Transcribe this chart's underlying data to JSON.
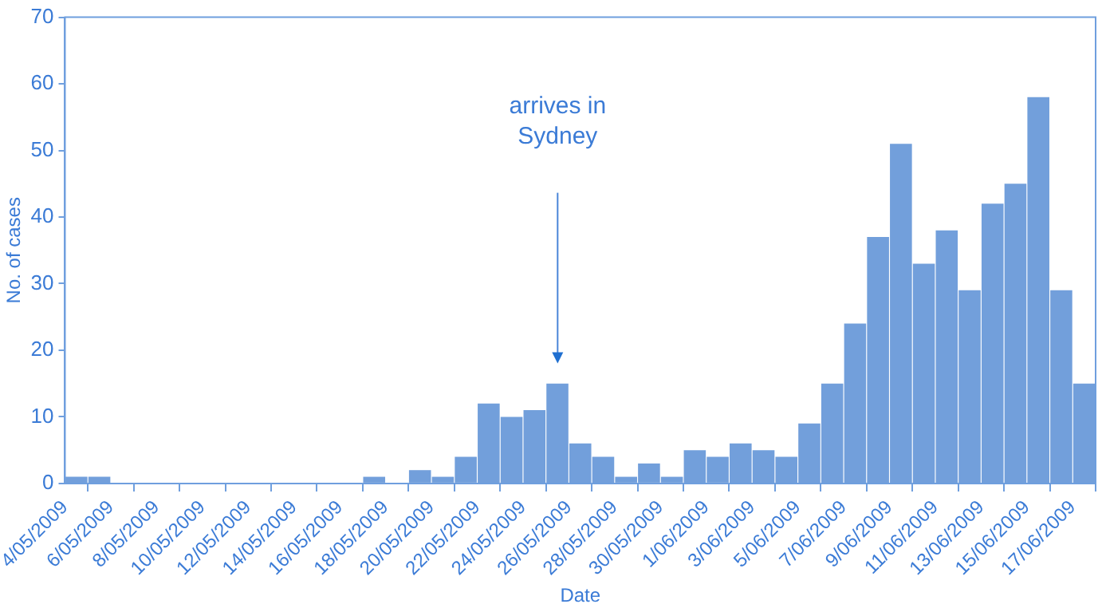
{
  "chart_data": {
    "type": "histogram",
    "xlabel": "Date",
    "ylabel": "No. of cases",
    "bins": [
      "2009-05-04",
      "2009-05-05",
      "2009-05-06",
      "2009-05-07",
      "2009-05-08",
      "2009-05-09",
      "2009-05-10",
      "2009-05-11",
      "2009-05-12",
      "2009-05-13",
      "2009-05-14",
      "2009-05-15",
      "2009-05-16",
      "2009-05-17",
      "2009-05-18",
      "2009-05-19",
      "2009-05-20",
      "2009-05-21",
      "2009-05-22",
      "2009-05-23",
      "2009-05-24",
      "2009-05-25",
      "2009-05-26",
      "2009-05-27",
      "2009-05-28",
      "2009-05-29",
      "2009-05-30",
      "2009-05-31",
      "2009-06-01",
      "2009-06-02",
      "2009-06-03",
      "2009-06-04",
      "2009-06-05",
      "2009-06-06",
      "2009-06-07",
      "2009-06-08",
      "2009-06-09",
      "2009-06-10",
      "2009-06-11",
      "2009-06-12",
      "2009-06-13",
      "2009-06-14",
      "2009-06-15",
      "2009-06-16",
      "2009-06-17",
      "2009-06-18"
    ],
    "values": [
      1,
      1,
      0,
      0,
      0,
      0,
      0,
      0,
      0,
      0,
      0,
      0,
      0,
      1,
      0,
      2,
      1,
      4,
      12,
      10,
      11,
      15,
      6,
      4,
      1,
      3,
      1,
      5,
      4,
      6,
      5,
      4,
      9,
      15,
      24,
      37,
      51,
      33,
      38,
      29,
      42,
      45,
      58,
      29,
      15
    ],
    "color": "#729fdb",
    "xlim": [
      "2009-05-04",
      "2009-06-18"
    ],
    "xticks": [
      {
        "value": "2009-05-04",
        "label": "4/05/2009"
      },
      {
        "value": "2009-05-06",
        "label": "6/05/2009"
      },
      {
        "value": "2009-05-08",
        "label": "8/05/2009"
      },
      {
        "value": "2009-05-10",
        "label": "10/05/2009"
      },
      {
        "value": "2009-05-12",
        "label": "12/05/2009"
      },
      {
        "value": "2009-05-14",
        "label": "14/05/2009"
      },
      {
        "value": "2009-05-16",
        "label": "16/05/2009"
      },
      {
        "value": "2009-05-18",
        "label": "18/05/2009"
      },
      {
        "value": "2009-05-20",
        "label": "20/05/2009"
      },
      {
        "value": "2009-05-22",
        "label": "22/05/2009"
      },
      {
        "value": "2009-05-24",
        "label": "24/05/2009"
      },
      {
        "value": "2009-05-26",
        "label": "26/05/2009"
      },
      {
        "value": "2009-05-28",
        "label": "28/05/2009"
      },
      {
        "value": "2009-05-30",
        "label": "30/05/2009"
      },
      {
        "value": "2009-06-01",
        "label": "1/06/2009"
      },
      {
        "value": "2009-06-03",
        "label": "3/06/2009"
      },
      {
        "value": "2009-06-05",
        "label": "5/06/2009"
      },
      {
        "value": "2009-06-07",
        "label": "7/06/2009"
      },
      {
        "value": "2009-06-09",
        "label": "9/06/2009"
      },
      {
        "value": "2009-06-11",
        "label": "11/06/2009"
      },
      {
        "value": "2009-06-13",
        "label": "13/06/2009"
      },
      {
        "value": "2009-06-15",
        "label": "15/06/2009"
      },
      {
        "value": "2009-06-17",
        "label": "17/06/2009"
      }
    ],
    "ylim": [
      0,
      70
    ],
    "yticks": [
      0,
      10,
      20,
      30,
      40,
      50,
      60,
      70
    ],
    "legend": false,
    "annotations": [
      "arrives in Sydney"
    ]
  }
}
